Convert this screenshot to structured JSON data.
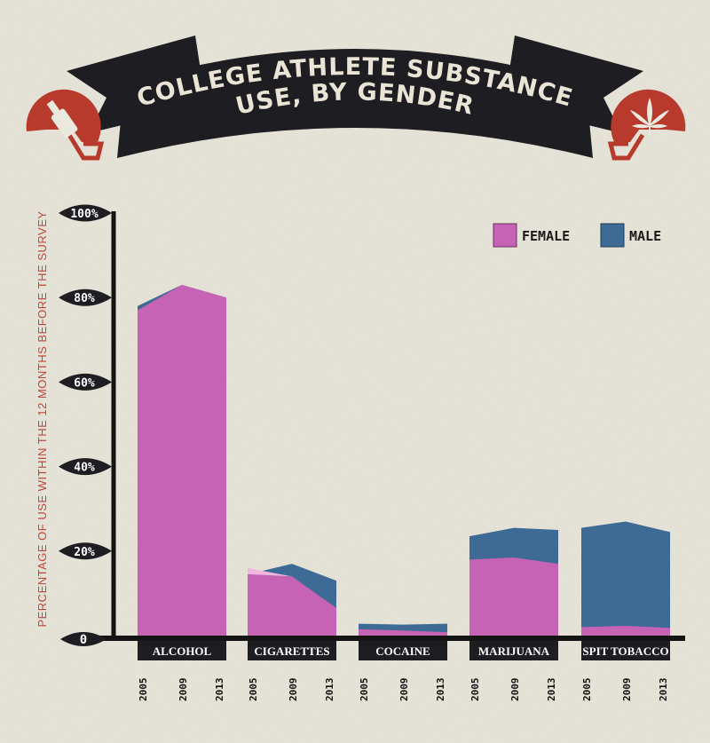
{
  "title_line1": "COLLEGE ATHLETE SUBSTANCE",
  "title_line2": "USE, BY GENDER",
  "colors": {
    "female": "#c763b5",
    "male": "#3d6b96",
    "female_light": "#f1b6dd",
    "accent_red": "#b83a2c",
    "dark": "#1d1d22",
    "background": "#ebe8dd"
  },
  "icons": [
    "helmet-bottle-icon",
    "helmet-leaf-icon"
  ],
  "chart_data": {
    "type": "area",
    "title": "College Athlete Substance Use, by Gender",
    "ylabel": "PERCENTAGE OF USE WITHIN THE 12 MONTHS BEFORE THE SURVEY",
    "ylim": [
      0,
      100
    ],
    "y_ticks": [
      "100%",
      "80%",
      "60%",
      "40%",
      "20%"
    ],
    "zero_label": "0",
    "legend": [
      {
        "name": "FEMALE",
        "key": "female"
      },
      {
        "name": "MALE",
        "key": "male"
      }
    ],
    "years": [
      "2005",
      "2009",
      "2013"
    ],
    "categories": [
      {
        "name": "ALCOHOL",
        "female": [
          77,
          83,
          80
        ],
        "male": [
          78,
          83,
          80
        ]
      },
      {
        "name": "CIGARETTES",
        "female": [
          16,
          14,
          6.5
        ],
        "male": [
          14.5,
          17,
          13
        ]
      },
      {
        "name": "COCAINE",
        "female": [
          1.5,
          1.2,
          0.8
        ],
        "male": [
          2.8,
          2.6,
          2.8
        ]
      },
      {
        "name": "MARIJUANA",
        "female": [
          18,
          18.5,
          17
        ],
        "male": [
          23.5,
          25.5,
          25
        ]
      },
      {
        "name": "SPIT TOBACCO",
        "female": [
          2,
          2.3,
          1.8
        ],
        "male": [
          25.5,
          27,
          24.5
        ]
      }
    ]
  }
}
